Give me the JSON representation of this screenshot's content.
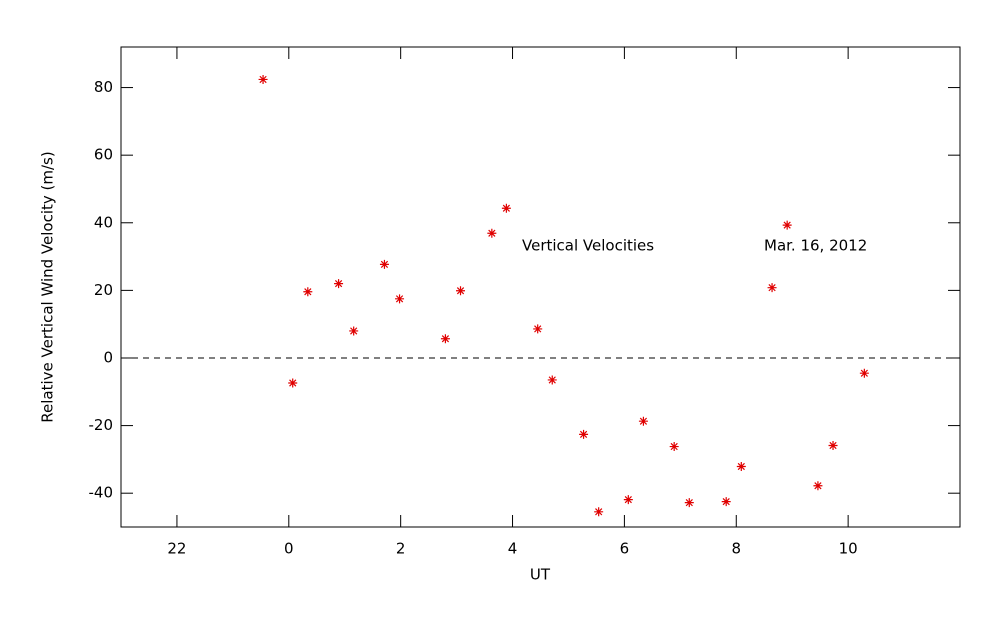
{
  "chart_data": {
    "type": "scatter",
    "xlabel": "UT",
    "ylabel": "Relative Vertical Wind Velocity (m/s)",
    "annotations": [
      "Vertical Velocities",
      "Mar. 16, 2012"
    ],
    "xlim": [
      -3,
      12
    ],
    "ylim": [
      -50,
      92
    ],
    "xticks": [
      {
        "value": -2,
        "label": "22"
      },
      0,
      2,
      4,
      6,
      8,
      10
    ],
    "yticks": [
      -40,
      -20,
      0,
      20,
      40,
      60,
      80
    ],
    "color": "#e00000",
    "x": [
      -0.46,
      0.07,
      0.34,
      0.89,
      1.16,
      1.71,
      1.98,
      2.8,
      3.07,
      3.63,
      3.89,
      4.45,
      4.71,
      5.27,
      5.54,
      6.07,
      6.34,
      6.89,
      7.16,
      7.82,
      8.09,
      8.64,
      8.91,
      9.46,
      9.73,
      10.29
    ],
    "values": [
      82.4,
      -7.4,
      19.6,
      22.0,
      8.0,
      27.7,
      17.5,
      5.7,
      19.9,
      36.9,
      44.3,
      8.6,
      -6.5,
      -22.6,
      -45.5,
      -41.9,
      -18.7,
      -26.2,
      -42.8,
      -42.5,
      -32.1,
      20.8,
      39.3,
      -37.8,
      -25.9,
      -4.5
    ]
  }
}
